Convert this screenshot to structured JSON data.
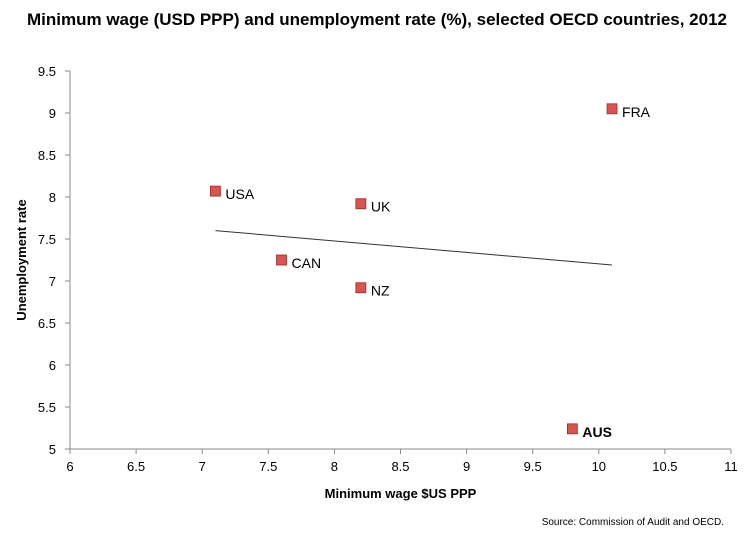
{
  "chart_data": {
    "type": "scatter",
    "title": "Minimum wage (USD PPP) and unemployment rate (%), selected OECD countries, 2012",
    "xlabel": "Minimum wage $US PPP",
    "ylabel": "Unemployment rate",
    "xlim": [
      6,
      11
    ],
    "ylim": [
      5,
      9.5
    ],
    "xticks": [
      "6",
      "6.5",
      "7",
      "7.5",
      "8",
      "8.5",
      "9",
      "9.5",
      "10",
      "10.5",
      "11"
    ],
    "yticks": [
      "5",
      "5.5",
      "6",
      "6.5",
      "7",
      "7.5",
      "8",
      "8.5",
      "9",
      "9.5"
    ],
    "grid": false,
    "marker_color": "#d9534f",
    "points": [
      {
        "label": "USA",
        "x": 7.1,
        "y": 8.07
      },
      {
        "label": "UK",
        "x": 8.2,
        "y": 7.92
      },
      {
        "label": "CAN",
        "x": 7.6,
        "y": 7.25
      },
      {
        "label": "NZ",
        "x": 8.2,
        "y": 6.92
      },
      {
        "label": "FRA",
        "x": 10.1,
        "y": 9.05
      },
      {
        "label": "AUS",
        "x": 9.8,
        "y": 5.24
      }
    ],
    "trendline": {
      "x": [
        7.1,
        10.1
      ],
      "y": [
        7.6,
        7.19
      ]
    },
    "source": "Source: Commission of Audit and OECD."
  }
}
